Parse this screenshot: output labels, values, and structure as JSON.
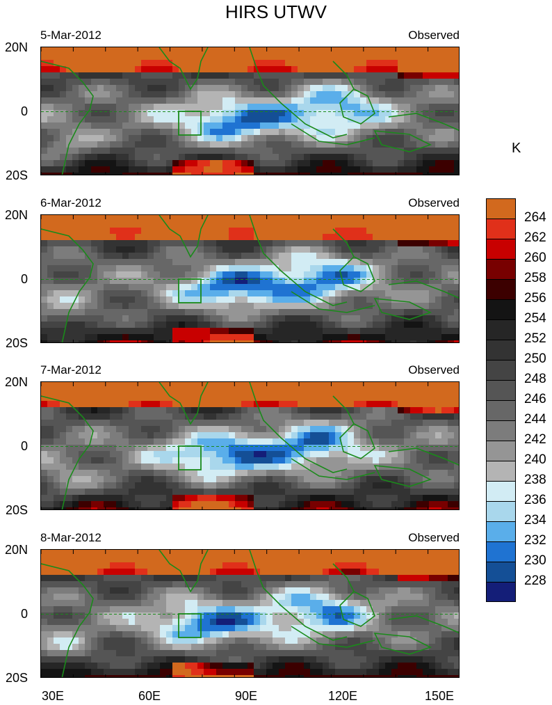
{
  "title": "HIRS UTWV",
  "unit": "K",
  "panels": [
    {
      "date": "5-Mar-2012",
      "label": "Observed",
      "seed": 1
    },
    {
      "date": "6-Mar-2012",
      "label": "Observed",
      "seed": 2
    },
    {
      "date": "7-Mar-2012",
      "label": "Observed",
      "seed": 3
    },
    {
      "date": "8-Mar-2012",
      "label": "Observed",
      "seed": 4
    }
  ],
  "lat_labels": [
    "20N",
    "0",
    "20S"
  ],
  "lon_labels": [
    "30E",
    "60E",
    "90E",
    "120E",
    "150E"
  ],
  "colorbar": {
    "levels": [
      "264",
      "262",
      "260",
      "258",
      "256",
      "254",
      "252",
      "250",
      "248",
      "246",
      "244",
      "242",
      "240",
      "238",
      "236",
      "234",
      "232",
      "230",
      "228"
    ],
    "colors": [
      "#d2691e",
      "#e0301a",
      "#c80000",
      "#780000",
      "#3c0000",
      "#141414",
      "#262626",
      "#333333",
      "#444444",
      "#555555",
      "#676767",
      "#7c7c7c",
      "#959595",
      "#b4b4b4",
      "#d2ecf4",
      "#a9d7ec",
      "#5aaeea",
      "#1f73d2",
      "#144f96",
      "#141e78"
    ]
  },
  "chart_data": {
    "type": "heatmap",
    "title": "HIRS UTWV",
    "panels": [
      "5-Mar-2012",
      "6-Mar-2012",
      "7-Mar-2012",
      "8-Mar-2012"
    ],
    "xlabel": "",
    "ylabel": "",
    "x_ticks": [
      "30E",
      "60E",
      "90E",
      "120E",
      "150E"
    ],
    "y_ticks": [
      "20N",
      "0",
      "20S"
    ],
    "xlim": [
      30,
      160
    ],
    "ylim": [
      -20,
      20
    ],
    "colorbar_label": "K",
    "colorbar_range": [
      228,
      264
    ]
  }
}
